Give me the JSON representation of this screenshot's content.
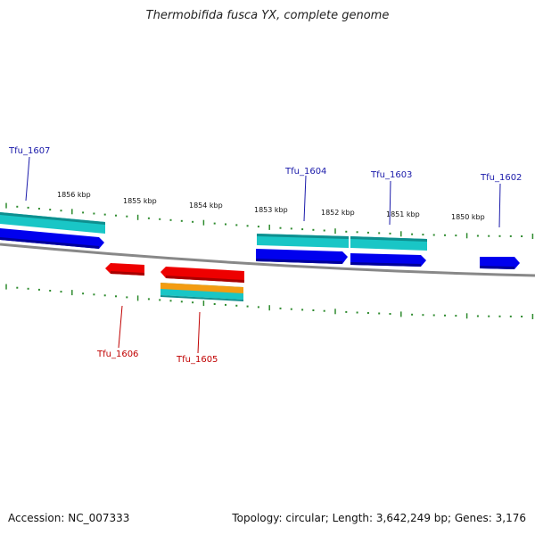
{
  "title": "Thermobifida fusca YX, complete genome",
  "footer": {
    "accession": "Accession: NC_007333",
    "info": "Topology: circular; Length: 3,642,249 bp; Genes: 3,176"
  },
  "colors": {
    "forward_gene": "#0000ee",
    "forward_cds": "#19c6c6",
    "reverse_gene": "#ee0000",
    "reverse_cds_orange": "#f39c12",
    "backbone": "#888888",
    "ticks": "#2e8b2e",
    "forward_label": "#1a1aaa",
    "reverse_label": "#c00000"
  },
  "kbp_labels": [
    "1856 kbp",
    "1855 kbp",
    "1854 kbp",
    "1853 kbp",
    "1852 kbp",
    "1851 kbp",
    "1850 kbp"
  ],
  "genes": {
    "forward": [
      "Tfu_1607",
      "Tfu_1604",
      "Tfu_1603",
      "Tfu_1602"
    ],
    "reverse": [
      "Tfu_1606",
      "Tfu_1605"
    ]
  }
}
